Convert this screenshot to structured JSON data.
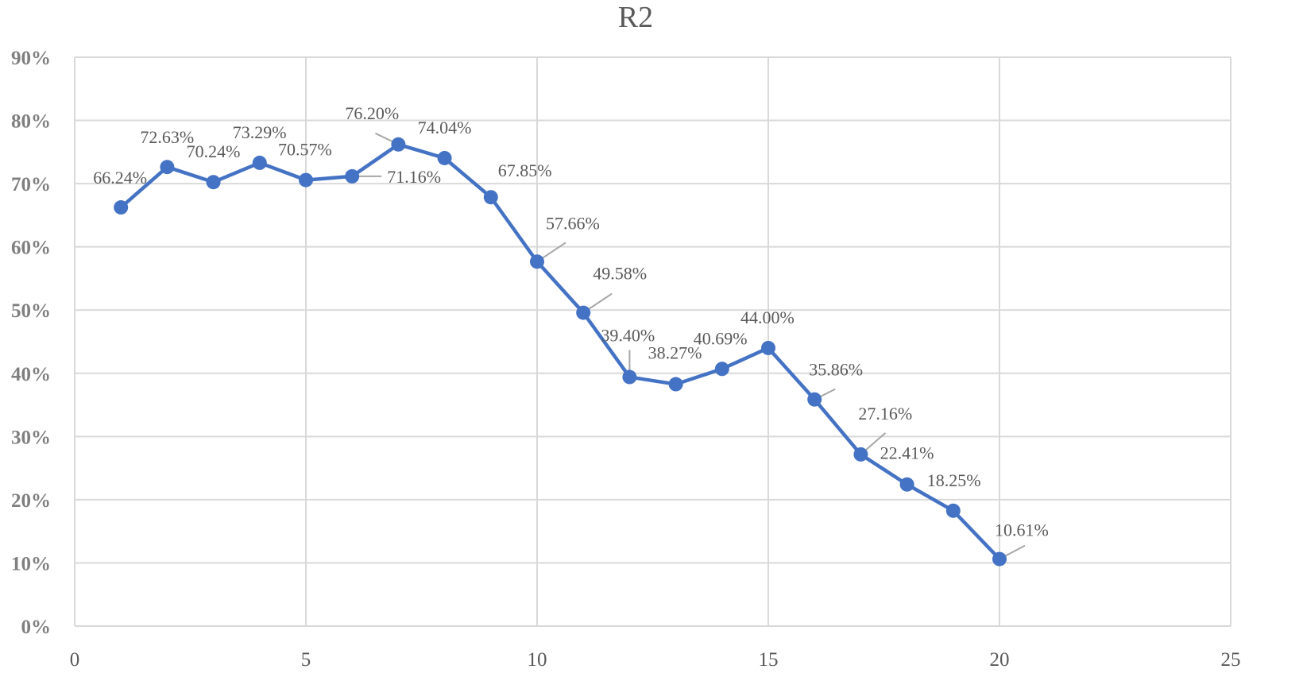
{
  "chart_data": {
    "type": "line",
    "title": "R2",
    "xlabel": "",
    "ylabel": "",
    "xlim": [
      0,
      25
    ],
    "ylim": [
      0,
      90
    ],
    "x_ticks": [
      "0",
      "5",
      "10",
      "15",
      "20",
      "25"
    ],
    "y_ticks": [
      "0%",
      "10%",
      "20%",
      "30%",
      "40%",
      "50%",
      "60%",
      "70%",
      "80%",
      "90%"
    ],
    "grid": true,
    "legend": "none",
    "series_color": "#4472C4",
    "series": [
      {
        "x": [
          1,
          2,
          3,
          4,
          5,
          6,
          7,
          8,
          9,
          10,
          11,
          12,
          13,
          14,
          15,
          16,
          17,
          18,
          19,
          20
        ],
        "values": [
          66.24,
          72.63,
          70.24,
          73.29,
          70.57,
          71.16,
          76.2,
          74.04,
          67.85,
          57.66,
          49.58,
          39.4,
          38.27,
          40.69,
          44.0,
          35.86,
          27.16,
          22.41,
          18.25,
          10.61
        ],
        "labels": [
          "66.24%",
          "72.63%",
          "70.24%",
          "73.29%",
          "70.57%",
          "71.16%",
          "76.20%",
          "74.04%",
          "67.85%",
          "57.66%",
          "49.58%",
          "39.40%",
          "38.27%",
          "40.69%",
          "44.00%",
          "35.86%",
          "27.16%",
          "22.41%",
          "18.25%",
          "10.61%"
        ]
      }
    ]
  }
}
